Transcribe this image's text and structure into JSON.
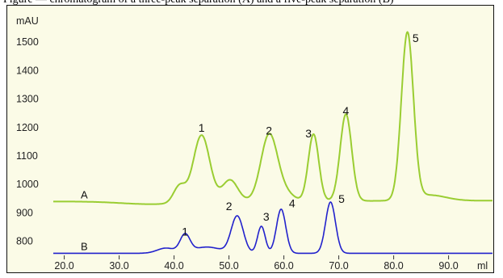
{
  "caption": "Figure — chromatogram of a three-peak separation (A) and a five-peak separation (B)",
  "colors": {
    "background": "#fbfbe7",
    "series_a": "#9acd32",
    "series_b": "#2222cc",
    "border": "#111111"
  },
  "chart_data": {
    "type": "line",
    "title": "",
    "xlabel": "ml",
    "ylabel": "mAU",
    "xlim": [
      18,
      98
    ],
    "ylim": [
      745,
      1580
    ],
    "x_ticks": [
      {
        "value": 20,
        "label": "20.0"
      },
      {
        "value": 30,
        "label": "30.0"
      },
      {
        "value": 40,
        "label": "40.0"
      },
      {
        "value": 50,
        "label": "50.0"
      },
      {
        "value": 60,
        "label": "60.0"
      },
      {
        "value": 70,
        "label": "70.0"
      },
      {
        "value": 80,
        "label": "80.0"
      },
      {
        "value": 90,
        "label": "90.0"
      }
    ],
    "y_ticks": [
      {
        "value": 800,
        "label": "800"
      },
      {
        "value": 900,
        "label": "900"
      },
      {
        "value": 1000,
        "label": "1000"
      },
      {
        "value": 1100,
        "label": "1100"
      },
      {
        "value": 1200,
        "label": "1200"
      },
      {
        "value": 1300,
        "label": "1300"
      },
      {
        "value": 1400,
        "label": "1400"
      },
      {
        "value": 1500,
        "label": "1500"
      }
    ],
    "grid": false,
    "series": [
      {
        "name": "A",
        "color": "#9acd32",
        "baseline_start": 940,
        "baseline_end": 943,
        "baseline_dip_at": 36,
        "baseline_dip_depth": 10,
        "peaks": [
          {
            "x": 41.0,
            "height": 60,
            "width": 1.1
          },
          {
            "x": 45.0,
            "height": 235,
            "width": 1.5
          },
          {
            "x": 50.2,
            "height": 75,
            "width": 1.4
          },
          {
            "x": 57.3,
            "height": 230,
            "width": 1.5
          },
          {
            "x": 60.0,
            "height": 30,
            "width": 1.6
          },
          {
            "x": 65.4,
            "height": 235,
            "width": 0.95
          },
          {
            "x": 71.3,
            "height": 305,
            "width": 1.05
          },
          {
            "x": 82.5,
            "height": 585,
            "width": 1.1
          },
          {
            "x": 86.5,
            "height": 20,
            "width": 3.0
          }
        ],
        "labels": [
          {
            "text": "1",
            "x": 45.0,
            "y": 1185
          },
          {
            "text": "2",
            "x": 57.3,
            "y": 1175
          },
          {
            "text": "3",
            "x": 64.5,
            "y": 1165
          },
          {
            "text": "4",
            "x": 71.3,
            "y": 1245
          },
          {
            "text": "5",
            "x": 84.0,
            "y": 1500
          }
        ]
      },
      {
        "name": "B",
        "color": "#2222cc",
        "baseline_start": 758,
        "baseline_end": 758,
        "peaks": [
          {
            "x": 38.5,
            "height": 18,
            "width": 1.6
          },
          {
            "x": 42.0,
            "height": 62,
            "width": 0.9
          },
          {
            "x": 46.0,
            "height": 22,
            "width": 2.5
          },
          {
            "x": 51.5,
            "height": 130,
            "width": 1.1
          },
          {
            "x": 55.9,
            "height": 95,
            "width": 0.7
          },
          {
            "x": 59.5,
            "height": 155,
            "width": 0.85
          },
          {
            "x": 68.5,
            "height": 180,
            "width": 0.9
          }
        ],
        "labels": [
          {
            "text": "1",
            "x": 42.0,
            "y": 820
          },
          {
            "text": "2",
            "x": 50.0,
            "y": 910
          },
          {
            "text": "3",
            "x": 56.8,
            "y": 873
          },
          {
            "text": "4",
            "x": 61.5,
            "y": 920
          },
          {
            "text": "5",
            "x": 70.5,
            "y": 935
          }
        ]
      }
    ]
  }
}
